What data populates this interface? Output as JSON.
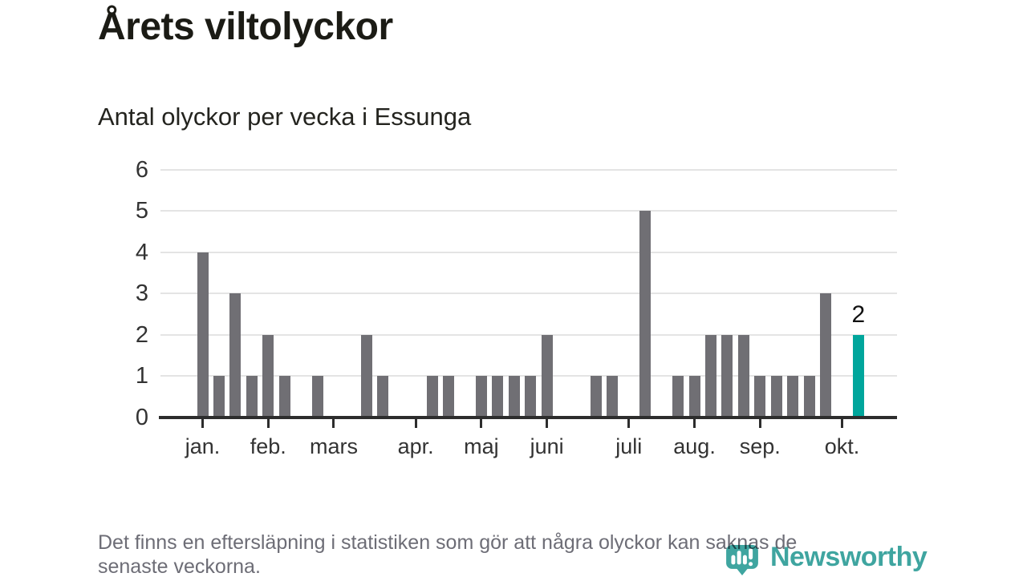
{
  "chart_data": {
    "type": "bar",
    "title": "Årets viltolyckor",
    "subtitle": "Antal olyckor per vecka i Essunga",
    "values": [
      4,
      1,
      3,
      1,
      2,
      1,
      0,
      1,
      0,
      0,
      2,
      1,
      0,
      0,
      1,
      1,
      0,
      1,
      1,
      1,
      1,
      2,
      0,
      0,
      1,
      1,
      0,
      5,
      0,
      1,
      1,
      2,
      2,
      2,
      1,
      1,
      1,
      1,
      3,
      0,
      2
    ],
    "highlight_index": 40,
    "highlight_label": "2",
    "y_ticks": [
      0,
      1,
      2,
      3,
      4,
      5,
      6
    ],
    "ylim": [
      0,
      6
    ],
    "grid": true,
    "legend": false,
    "month_ticks": [
      {
        "index": 0,
        "label": "jan."
      },
      {
        "index": 4,
        "label": "feb."
      },
      {
        "index": 8,
        "label": "mars"
      },
      {
        "index": 13,
        "label": "apr."
      },
      {
        "index": 17,
        "label": "maj"
      },
      {
        "index": 21,
        "label": "juni"
      },
      {
        "index": 26,
        "label": "juli"
      },
      {
        "index": 30,
        "label": "aug."
      },
      {
        "index": 34,
        "label": "sep."
      },
      {
        "index": 39,
        "label": "okt."
      }
    ],
    "colors": {
      "bar": "#706f74",
      "highlight": "#00a69c",
      "grid": "#e4e4e4",
      "axis": "#2d2d2d",
      "tick_text": "#333333"
    }
  },
  "footer": {
    "lines": [
      "Det finns en eftersläpning i statistiken som gör att några olyckor kan saknas de",
      "senaste veckorna."
    ]
  },
  "logo": {
    "text": "Newsworthy",
    "color": "#3fa5a0"
  }
}
